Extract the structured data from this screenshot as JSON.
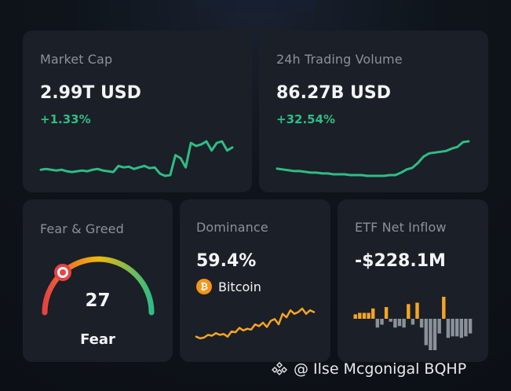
{
  "market_cap": {
    "title": "Market Cap",
    "value": "2.99T USD",
    "change": "+1.33%",
    "sparkline_color": "#2ebd85",
    "sparkline": [
      55,
      54,
      55,
      56,
      55,
      57,
      58,
      57,
      56,
      57,
      55,
      54,
      56,
      57,
      58,
      50,
      52,
      51,
      54,
      52,
      50,
      53,
      52,
      60,
      63,
      62,
      36,
      40,
      52,
      20,
      24,
      22,
      18,
      30,
      20,
      18,
      30,
      26
    ]
  },
  "trading_volume": {
    "title": "24h Trading Volume",
    "value": "86.27B USD",
    "change": "+32.54%",
    "sparkline_color": "#2ebd85",
    "sparkline": [
      55,
      56,
      57,
      58,
      58,
      59,
      60,
      60,
      61,
      61,
      62,
      62,
      62,
      63,
      63,
      63,
      64,
      64,
      64,
      64,
      63,
      63,
      60,
      56,
      54,
      48,
      40,
      36,
      35,
      34,
      33,
      30,
      28,
      22,
      21
    ]
  },
  "fear_greed": {
    "title": "Fear & Greed",
    "value": "27",
    "label": "Fear",
    "index_value": 27,
    "gradient": [
      "#e84142",
      "#f0b90b",
      "#2ebd85"
    ]
  },
  "dominance": {
    "title": "Dominance",
    "value": "59.4%",
    "coin_name": "Bitcoin",
    "coin_icon": "bitcoin-icon",
    "sparkline_color": "#f5a524",
    "sparkline": [
      40,
      42,
      41,
      38,
      39,
      36,
      38,
      37,
      40,
      34,
      35,
      30,
      33,
      31,
      32,
      26,
      28,
      24,
      29,
      22,
      20,
      26,
      14,
      18,
      10,
      14,
      12,
      8,
      14,
      10,
      12
    ]
  },
  "etf_net_inflow": {
    "title": "ETF Net Inflow",
    "value": "-$228.1M",
    "positive_color": "#f5a524",
    "negative_color": "#8b919a",
    "bars": [
      3,
      4,
      4,
      4,
      7,
      -6,
      -4,
      8,
      -2,
      -6,
      -5,
      -6,
      10,
      -4,
      11,
      -6,
      -18,
      -30,
      -22,
      -10,
      15,
      -13,
      -12,
      -12,
      -13,
      -12,
      -10
    ]
  },
  "watermark": {
    "text": "@ Ilse Mcgonigal BQHP",
    "icon": "binance-diamond-icon"
  }
}
